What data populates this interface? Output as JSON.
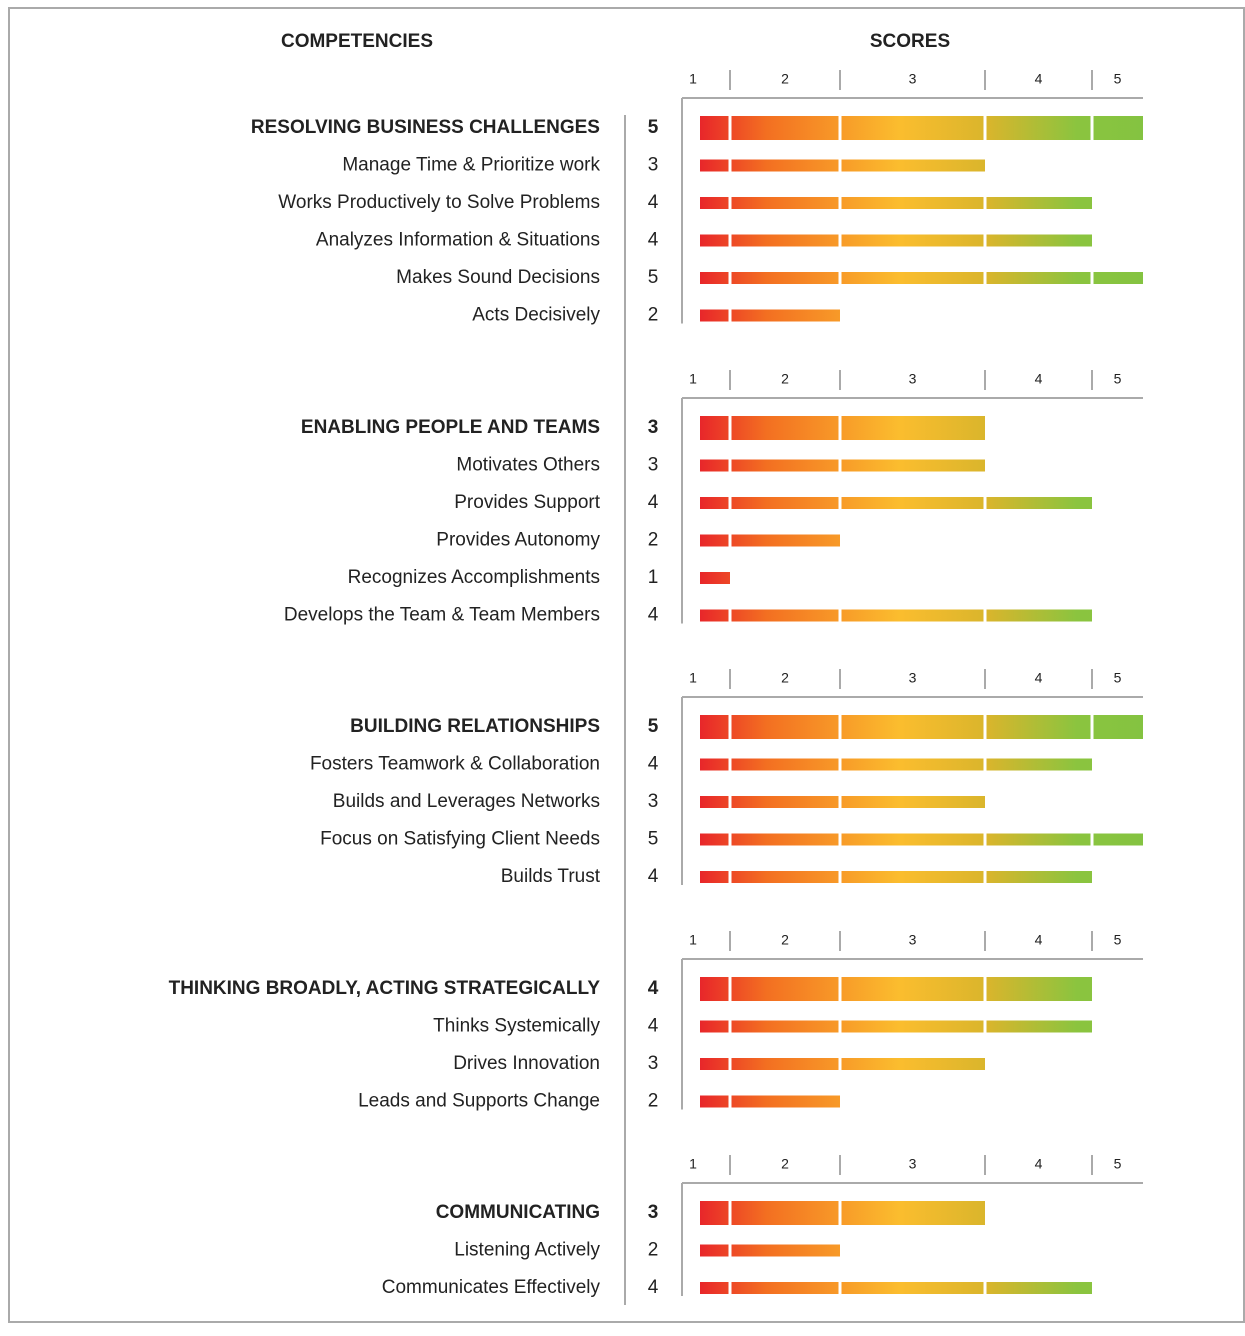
{
  "headers": {
    "left": "COMPETENCIES",
    "right": "SCORES"
  },
  "chart_data": [
    {
      "type": "bar",
      "title": "RESOLVING BUSINESS CHALLENGES",
      "score": 5,
      "categories": [
        "Manage Time & Prioritize work",
        "Works Productively to Solve Problems",
        "Analyzes Information & Situations",
        "Makes Sound Decisions",
        "Acts Decisively"
      ],
      "values": [
        3,
        4,
        4,
        5,
        2
      ],
      "xlim": [
        0,
        5
      ],
      "xticks": [
        1,
        2,
        3,
        4,
        5
      ]
    },
    {
      "type": "bar",
      "title": "ENABLING PEOPLE AND TEAMS",
      "score": 3,
      "categories": [
        "Motivates Others",
        "Provides Support",
        "Provides Autonomy",
        "Recognizes Accomplishments",
        "Develops the Team & Team Members"
      ],
      "values": [
        3,
        4,
        2,
        1,
        4
      ],
      "xlim": [
        0,
        5
      ],
      "xticks": [
        1,
        2,
        3,
        4,
        5
      ]
    },
    {
      "type": "bar",
      "title": "BUILDING RELATIONSHIPS",
      "score": 5,
      "categories": [
        "Fosters Teamwork & Collaboration",
        "Builds and Leverages Networks",
        "Focus on Satisfying Client Needs",
        "Builds Trust"
      ],
      "values": [
        4,
        3,
        5,
        4
      ],
      "xlim": [
        0,
        5
      ],
      "xticks": [
        1,
        2,
        3,
        4,
        5
      ]
    },
    {
      "type": "bar",
      "title": "THINKING BROADLY, ACTING STRATEGICALLY",
      "score": 4,
      "categories": [
        "Thinks Systemically",
        "Drives Innovation",
        "Leads and Supports Change"
      ],
      "values": [
        4,
        3,
        2
      ],
      "xlim": [
        0,
        5
      ],
      "xticks": [
        1,
        2,
        3,
        4,
        5
      ]
    },
    {
      "type": "bar",
      "title": "COMMUNICATING",
      "score": 3,
      "categories": [
        "Listening Actively",
        "Communicates Effectively"
      ],
      "values": [
        2,
        4
      ],
      "xlim": [
        0,
        5
      ],
      "xticks": [
        1,
        2,
        3,
        4,
        5
      ]
    }
  ]
}
